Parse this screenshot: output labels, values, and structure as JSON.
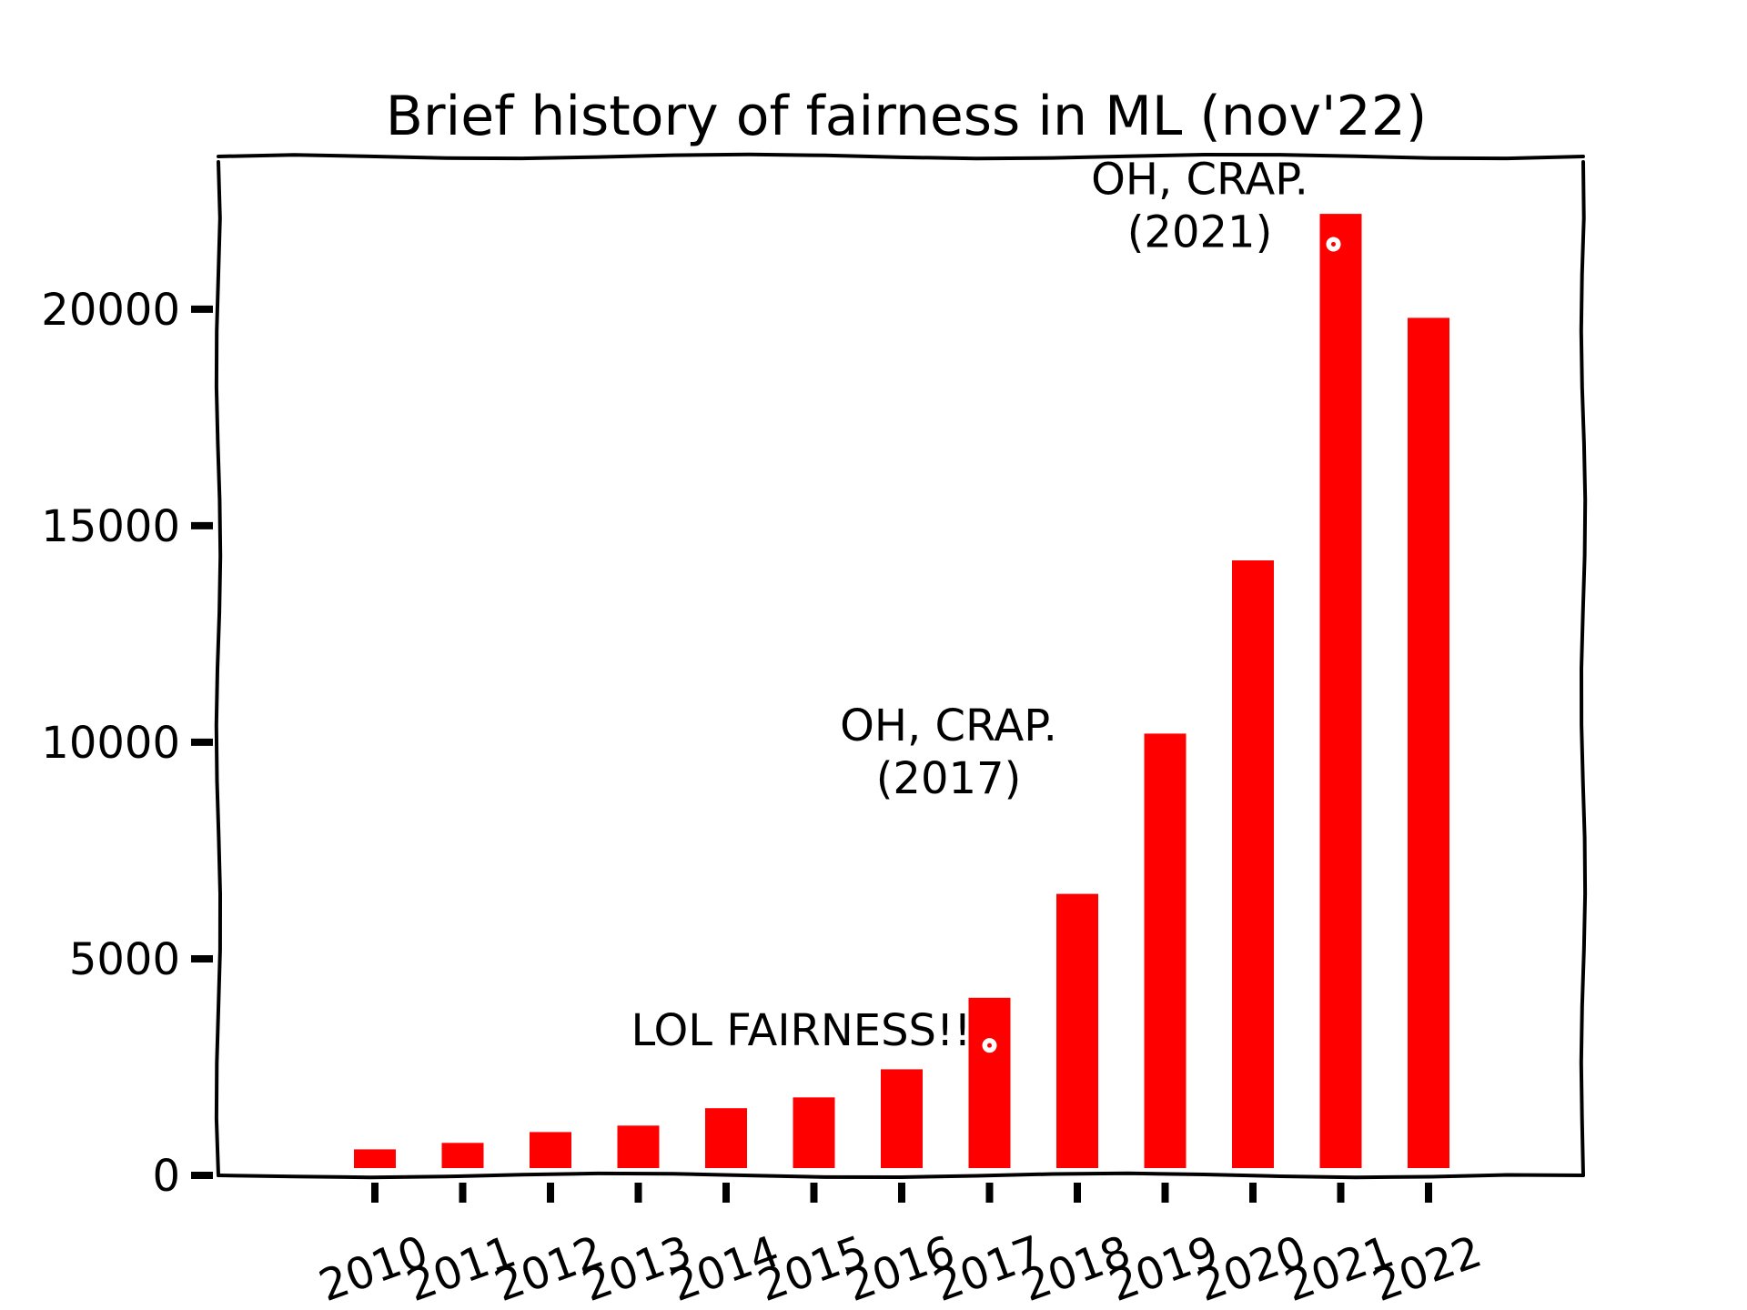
{
  "chart_data": {
    "type": "bar",
    "title": "Brief history of fairness in ML (nov'22)",
    "xlabel": "",
    "ylabel": "",
    "categories": [
      "2010",
      "2011",
      "2012",
      "2013",
      "2014",
      "2015",
      "2016",
      "2017",
      "2018",
      "2019",
      "2020",
      "2021",
      "2022"
    ],
    "values": [
      600,
      750,
      1000,
      1150,
      1550,
      1800,
      2450,
      4100,
      6500,
      10200,
      14200,
      22200,
      19800
    ],
    "ylim": [
      0,
      23400
    ],
    "yticks": [
      0,
      5000,
      10000,
      15000,
      20000
    ],
    "grid": false,
    "colors": {
      "bar": "#ff0000",
      "axis": "#000000",
      "background": "#ffffff"
    },
    "annotations": [
      {
        "text": "LOL FAIRNESS!!",
        "category": "2017",
        "value": 3000
      },
      {
        "text": "OH, CRAP.\n(2017)",
        "category": "2017",
        "value": 7000
      },
      {
        "text": "OH, CRAP.\n(2021)",
        "category": "2021",
        "value": 21500
      }
    ]
  }
}
